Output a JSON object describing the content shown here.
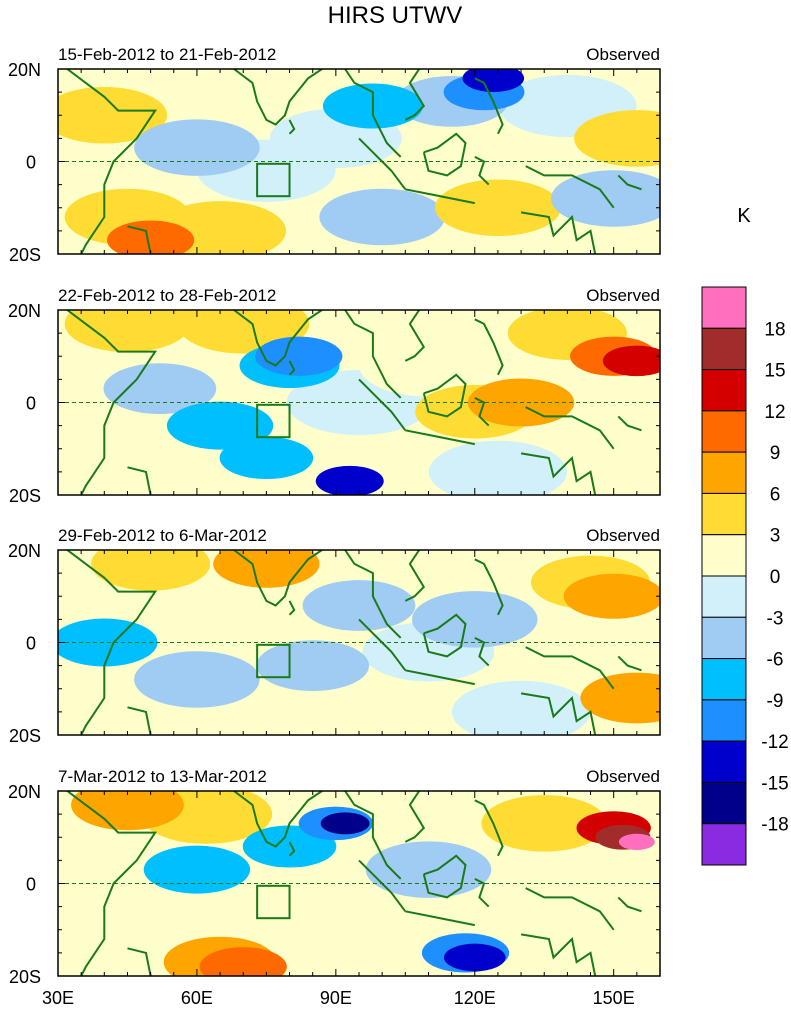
{
  "chart_data": {
    "type": "heatmap",
    "title": "HIRS UTWV",
    "units": "K",
    "x_ticks": [
      "30E",
      "60E",
      "90E",
      "120E",
      "150E"
    ],
    "x_tick_values": [
      30,
      60,
      90,
      120,
      150
    ],
    "y_ticks": [
      "20N",
      "0",
      "20S"
    ],
    "y_tick_values": [
      20,
      0,
      -20
    ],
    "xlim": [
      30,
      160
    ],
    "ylim": [
      -20,
      20
    ],
    "colorbar": {
      "labels": [
        "18",
        "15",
        "12",
        "9",
        "6",
        "3",
        "0",
        "-3",
        "-6",
        "-9",
        "-12",
        "-15",
        "-18"
      ],
      "levels": [
        18,
        15,
        12,
        9,
        6,
        3,
        0,
        -3,
        -6,
        -9,
        -12,
        -15,
        -18
      ],
      "colors": [
        "#ff6fbe",
        "#a12c2c",
        "#d40000",
        "#ff6a00",
        "#ffa500",
        "#ffdc33",
        "#ffffcc",
        "#d2f0fa",
        "#a0ccf4",
        "#00bfff",
        "#1e8fff",
        "#0000cd",
        "#00008b",
        "#8a2be2"
      ]
    },
    "panels": [
      {
        "period": "15-Feb-2012 to 21-Feb-2012",
        "label": "Observed",
        "cells": [
          {
            "lon": 40,
            "lat": 10,
            "value": 4
          },
          {
            "lon": 55,
            "lat": 14,
            "value": 2
          },
          {
            "lon": 48,
            "lat": 0,
            "value": 1
          },
          {
            "lon": 60,
            "lat": 3,
            "value": -4
          },
          {
            "lon": 75,
            "lat": -2,
            "value": -2
          },
          {
            "lon": 45,
            "lat": -12,
            "value": 4
          },
          {
            "lon": 50,
            "lat": -17,
            "value": 10
          },
          {
            "lon": 65,
            "lat": -15,
            "value": 3
          },
          {
            "lon": 80,
            "lat": 14,
            "value": 0
          },
          {
            "lon": 90,
            "lat": 5,
            "value": -3
          },
          {
            "lon": 98,
            "lat": 12,
            "value": -8
          },
          {
            "lon": 115,
            "lat": 13,
            "value": -6
          },
          {
            "lon": 122,
            "lat": 15,
            "value": -11
          },
          {
            "lon": 124,
            "lat": 18,
            "value": -14
          },
          {
            "lon": 110,
            "lat": -5,
            "value": 1
          },
          {
            "lon": 100,
            "lat": -12,
            "value": -4
          },
          {
            "lon": 125,
            "lat": -10,
            "value": 4
          },
          {
            "lon": 140,
            "lat": 12,
            "value": -2
          },
          {
            "lon": 155,
            "lat": 5,
            "value": 4
          },
          {
            "lon": 150,
            "lat": -8,
            "value": -4
          }
        ]
      },
      {
        "period": "22-Feb-2012 to 28-Feb-2012",
        "label": "Observed",
        "cells": [
          {
            "lon": 45,
            "lat": 17,
            "value": 4
          },
          {
            "lon": 70,
            "lat": 17,
            "value": 3
          },
          {
            "lon": 52,
            "lat": 3,
            "value": -6
          },
          {
            "lon": 65,
            "lat": -5,
            "value": -7
          },
          {
            "lon": 75,
            "lat": -12,
            "value": -9
          },
          {
            "lon": 80,
            "lat": 8,
            "value": -8
          },
          {
            "lon": 82,
            "lat": 10,
            "value": -10
          },
          {
            "lon": 95,
            "lat": 0,
            "value": -1
          },
          {
            "lon": 93,
            "lat": -17,
            "value": -13
          },
          {
            "lon": 110,
            "lat": 8,
            "value": 2
          },
          {
            "lon": 120,
            "lat": -2,
            "value": 5
          },
          {
            "lon": 130,
            "lat": 0,
            "value": 7
          },
          {
            "lon": 140,
            "lat": 15,
            "value": 5
          },
          {
            "lon": 150,
            "lat": 10,
            "value": 10
          },
          {
            "lon": 155,
            "lat": 9,
            "value": 13
          },
          {
            "lon": 125,
            "lat": -15,
            "value": -2
          }
        ]
      },
      {
        "period": "29-Feb-2012 to 6-Mar-2012",
        "label": "Observed",
        "cells": [
          {
            "lon": 50,
            "lat": 17,
            "value": 5
          },
          {
            "lon": 75,
            "lat": 17,
            "value": 7
          },
          {
            "lon": 40,
            "lat": 0,
            "value": -7
          },
          {
            "lon": 60,
            "lat": -8,
            "value": -4
          },
          {
            "lon": 85,
            "lat": -5,
            "value": -6
          },
          {
            "lon": 95,
            "lat": 8,
            "value": -6
          },
          {
            "lon": 110,
            "lat": -2,
            "value": -3
          },
          {
            "lon": 120,
            "lat": 5,
            "value": -4
          },
          {
            "lon": 145,
            "lat": 13,
            "value": 5
          },
          {
            "lon": 150,
            "lat": 10,
            "value": 8
          },
          {
            "lon": 155,
            "lat": -12,
            "value": 6
          },
          {
            "lon": 130,
            "lat": -15,
            "value": -2
          }
        ]
      },
      {
        "period": "7-Mar-2012 to 13-Mar-2012",
        "label": "Observed",
        "cells": [
          {
            "lon": 45,
            "lat": 17,
            "value": 6
          },
          {
            "lon": 62,
            "lat": 15,
            "value": 3
          },
          {
            "lon": 60,
            "lat": 3,
            "value": -7
          },
          {
            "lon": 80,
            "lat": 8,
            "value": -9
          },
          {
            "lon": 90,
            "lat": 13,
            "value": -12
          },
          {
            "lon": 92,
            "lat": 13,
            "value": -16
          },
          {
            "lon": 110,
            "lat": 3,
            "value": -4
          },
          {
            "lon": 118,
            "lat": -15,
            "value": -10
          },
          {
            "lon": 120,
            "lat": -16,
            "value": -14
          },
          {
            "lon": 65,
            "lat": -17,
            "value": 6
          },
          {
            "lon": 70,
            "lat": -18,
            "value": 10
          },
          {
            "lon": 135,
            "lat": 13,
            "value": 4
          },
          {
            "lon": 150,
            "lat": 12,
            "value": 12
          },
          {
            "lon": 152,
            "lat": 10,
            "value": 15
          },
          {
            "lon": 155,
            "lat": 9,
            "value": 19
          },
          {
            "lon": 150,
            "lat": -10,
            "value": 0
          }
        ]
      }
    ]
  }
}
